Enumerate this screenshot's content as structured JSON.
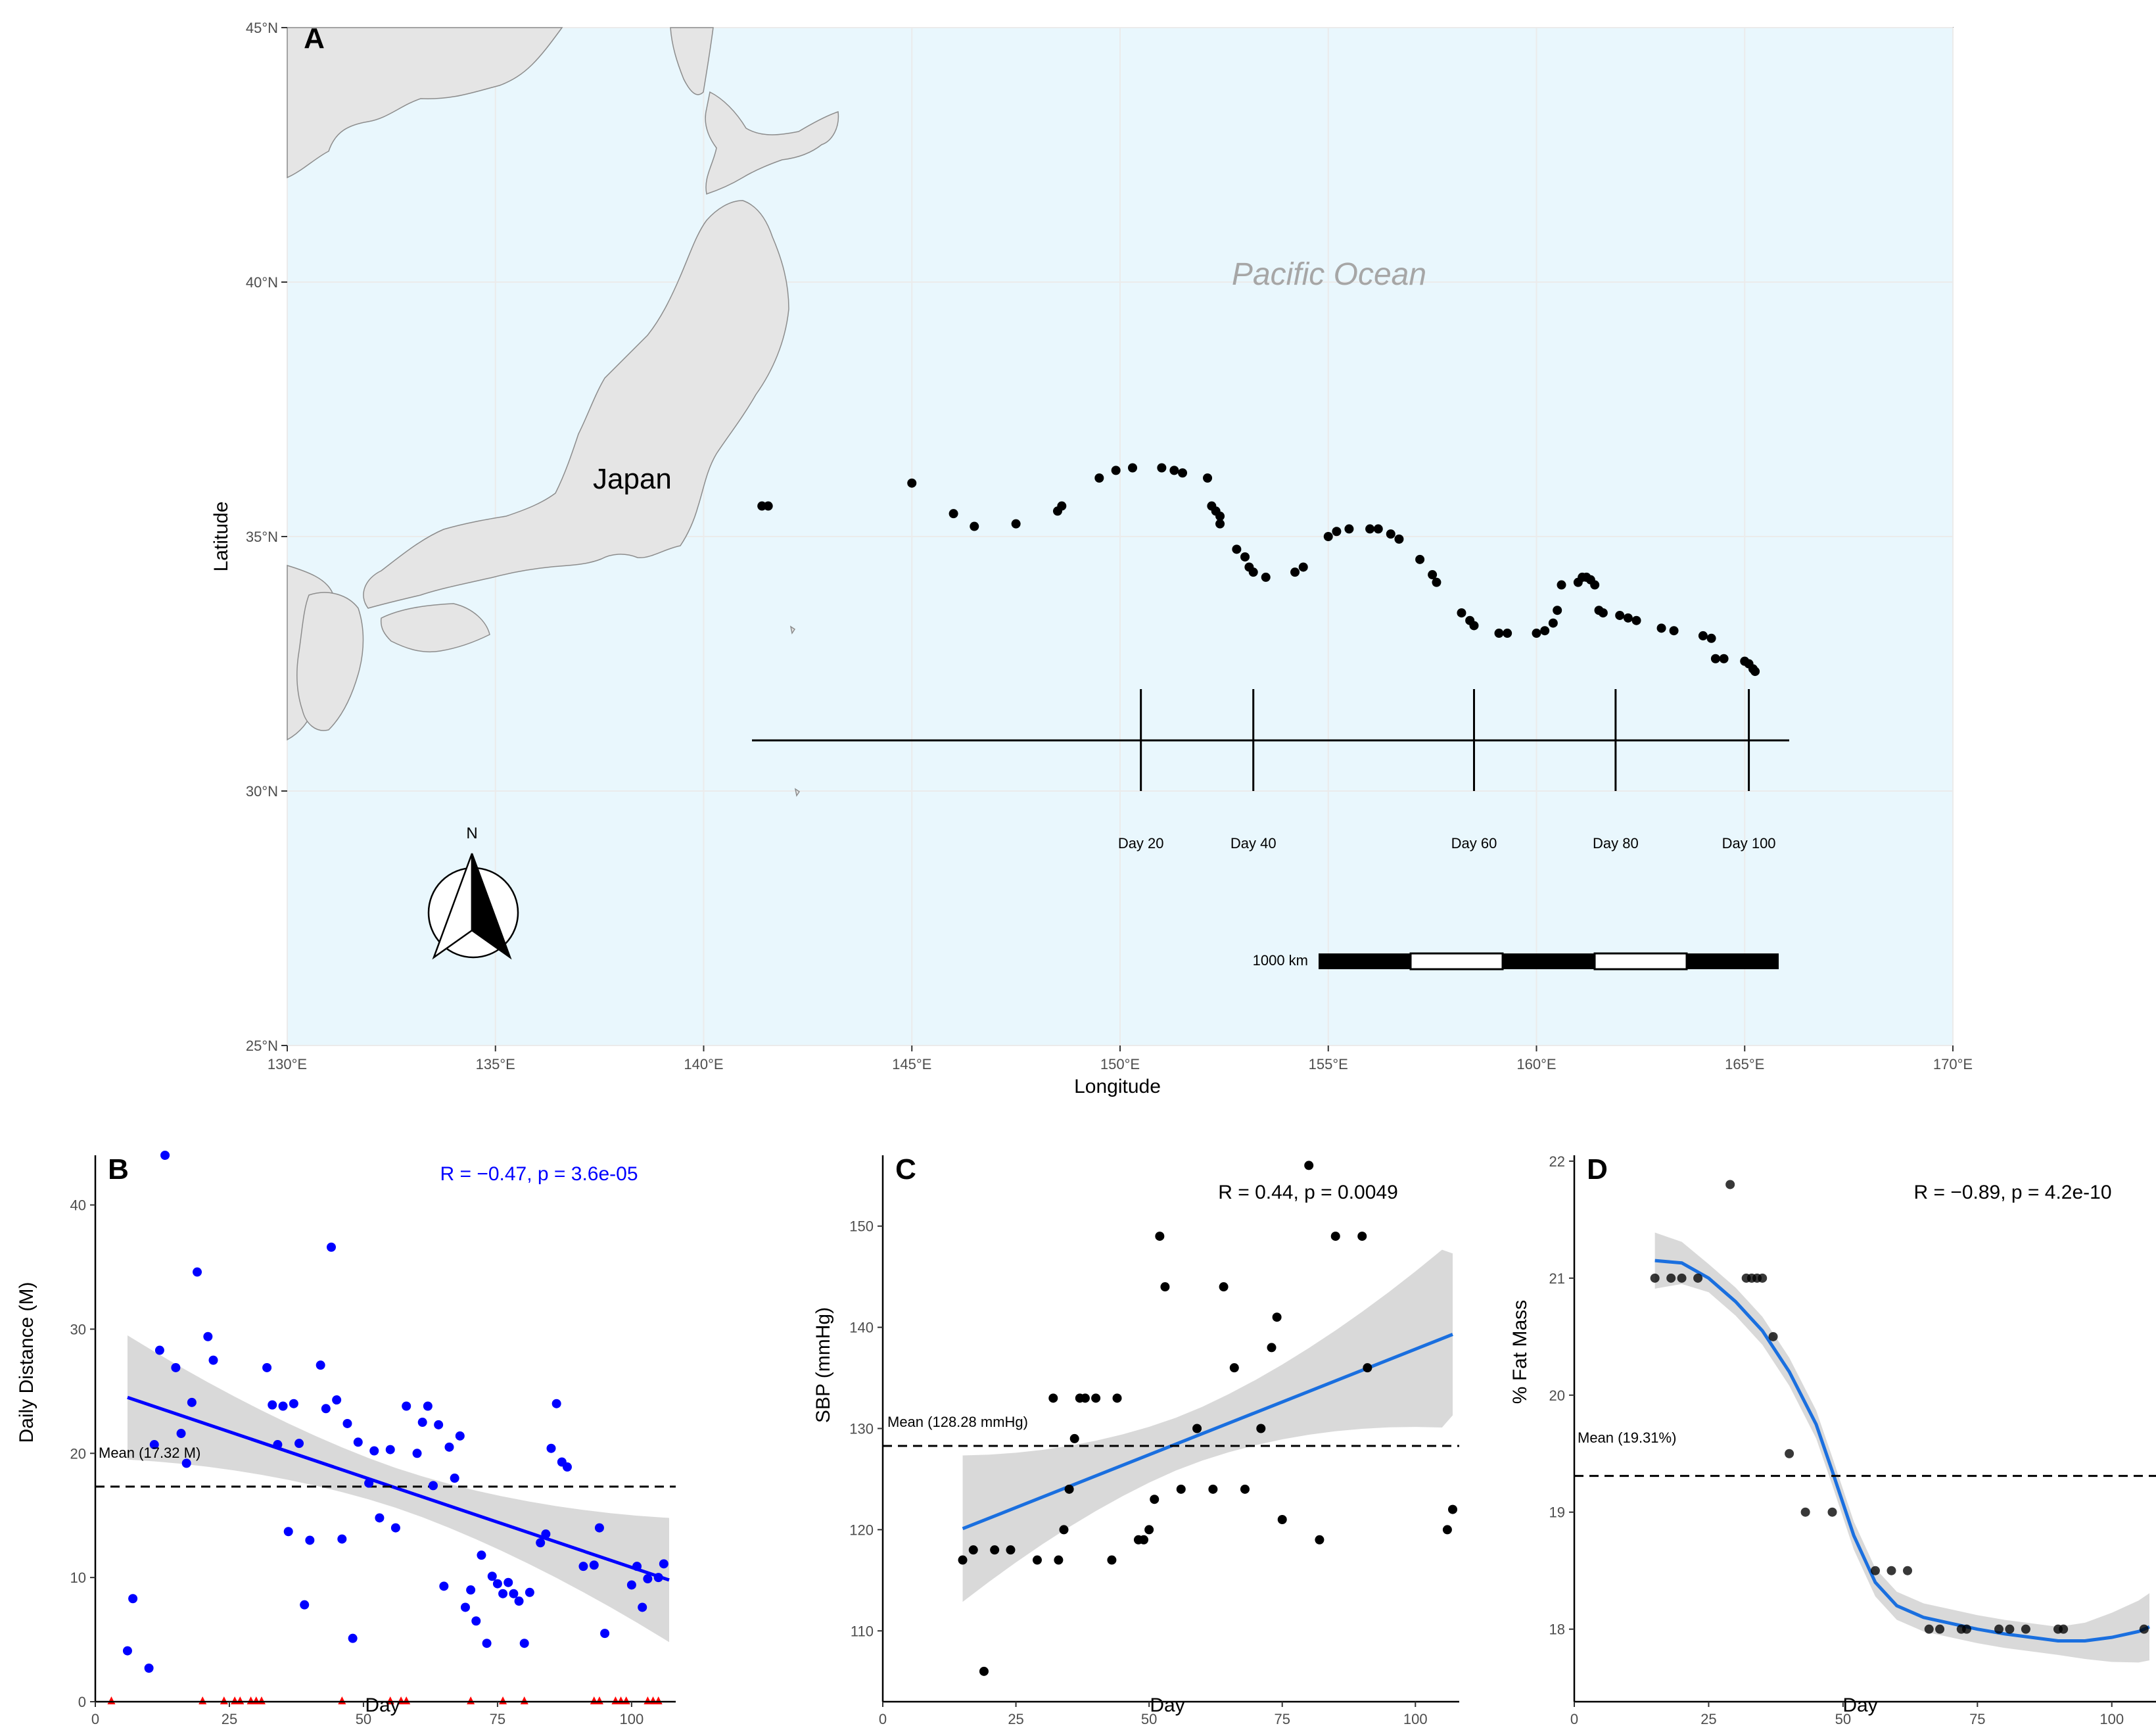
{
  "chart_data": [
    {
      "panel": "A",
      "type": "scatter",
      "subtype": "map",
      "xlabel": "Longitude",
      "ylabel": "Latitude",
      "xlim": [
        130,
        170
      ],
      "ylim": [
        25,
        45
      ],
      "x_ticks": [
        "130°E",
        "135°E",
        "140°E",
        "145°E",
        "150°E",
        "155°E",
        "160°E",
        "165°E",
        "170°E"
      ],
      "y_ticks": [
        "25°N",
        "30°N",
        "35°N",
        "40°N",
        "45°N"
      ],
      "ocean_label": "Pacific Ocean",
      "land_label": "Japan",
      "north_label": "N",
      "scale_label": "1000 km",
      "timeline_labels": [
        {
          "label": "Day 20",
          "lon": 150.5
        },
        {
          "label": "Day 40",
          "lon": 153.2
        },
        {
          "label": "Day 60",
          "lon": 158.5
        },
        {
          "label": "Day 80",
          "lon": 161.9
        },
        {
          "label": "Day 100",
          "lon": 165.1
        }
      ],
      "track": [
        [
          141.4,
          35.6
        ],
        [
          141.55,
          35.6
        ],
        [
          145.0,
          36.05
        ],
        [
          146.0,
          35.45
        ],
        [
          146.5,
          35.2
        ],
        [
          147.5,
          35.25
        ],
        [
          148.5,
          35.5
        ],
        [
          148.6,
          35.6
        ],
        [
          149.5,
          36.15
        ],
        [
          149.9,
          36.3
        ],
        [
          150.3,
          36.35
        ],
        [
          151.0,
          36.35
        ],
        [
          151.3,
          36.3
        ],
        [
          151.5,
          36.25
        ],
        [
          152.1,
          36.15
        ],
        [
          152.2,
          35.6
        ],
        [
          152.3,
          35.5
        ],
        [
          152.4,
          35.25
        ],
        [
          152.4,
          35.4
        ],
        [
          152.8,
          34.75
        ],
        [
          153.0,
          34.6
        ],
        [
          153.1,
          34.4
        ],
        [
          153.2,
          34.3
        ],
        [
          153.5,
          34.2
        ],
        [
          154.2,
          34.3
        ],
        [
          154.4,
          34.4
        ],
        [
          155.0,
          35.0
        ],
        [
          155.2,
          35.1
        ],
        [
          155.5,
          35.15
        ],
        [
          156.0,
          35.15
        ],
        [
          156.2,
          35.15
        ],
        [
          156.5,
          35.05
        ],
        [
          156.7,
          34.95
        ],
        [
          157.2,
          34.55
        ],
        [
          157.5,
          34.25
        ],
        [
          157.6,
          34.1
        ],
        [
          158.2,
          33.5
        ],
        [
          158.4,
          33.35
        ],
        [
          158.5,
          33.25
        ],
        [
          159.1,
          33.1
        ],
        [
          159.3,
          33.1
        ],
        [
          160.0,
          33.1
        ],
        [
          160.2,
          33.15
        ],
        [
          160.4,
          33.3
        ],
        [
          160.5,
          33.55
        ],
        [
          160.6,
          34.05
        ],
        [
          161.0,
          34.1
        ],
        [
          161.1,
          34.2
        ],
        [
          161.2,
          34.2
        ],
        [
          161.3,
          34.15
        ],
        [
          161.4,
          34.05
        ],
        [
          161.5,
          33.55
        ],
        [
          161.6,
          33.5
        ],
        [
          162.0,
          33.45
        ],
        [
          162.2,
          33.4
        ],
        [
          162.4,
          33.35
        ],
        [
          163.0,
          33.2
        ],
        [
          163.3,
          33.15
        ],
        [
          164.0,
          33.05
        ],
        [
          164.2,
          33.0
        ],
        [
          164.3,
          32.6
        ],
        [
          164.5,
          32.6
        ],
        [
          165.0,
          32.55
        ],
        [
          165.1,
          32.5
        ],
        [
          165.2,
          32.4
        ],
        [
          165.25,
          32.35
        ]
      ]
    },
    {
      "panel": "B",
      "type": "scatter",
      "xlabel": "Day",
      "ylabel": "Daily Distance (M)",
      "xlim": [
        0,
        107
      ],
      "ylim": [
        0,
        44
      ],
      "x_ticks": [
        0,
        25,
        50,
        75,
        100
      ],
      "y_ticks": [
        0,
        10,
        20,
        30,
        40
      ],
      "annotation": "R = −0.47, p = 3.6e-05",
      "annotation_color": "#0000ff",
      "mean_value": 17.32,
      "mean_label": "Mean (17.32 M)",
      "fit": {
        "x0": 6,
        "y0": 24.5,
        "x1": 107,
        "y1": 9.8,
        "color": "#0000ff"
      },
      "points": [
        [
          6,
          4.1
        ],
        [
          7,
          8.3
        ],
        [
          10,
          2.7
        ],
        [
          11,
          20.7
        ],
        [
          12,
          28.3
        ],
        [
          13,
          44
        ],
        [
          15,
          26.9
        ],
        [
          16,
          21.6
        ],
        [
          17,
          19.2
        ],
        [
          18,
          24.1
        ],
        [
          19,
          34.6
        ],
        [
          21,
          29.4
        ],
        [
          22,
          27.5
        ],
        [
          32,
          26.9
        ],
        [
          33,
          23.9
        ],
        [
          34,
          20.7
        ],
        [
          35,
          23.8
        ],
        [
          36,
          13.7
        ],
        [
          37,
          24.0
        ],
        [
          38,
          20.8
        ],
        [
          39,
          7.8
        ],
        [
          40,
          13.0
        ],
        [
          42,
          27.1
        ],
        [
          43,
          23.6
        ],
        [
          44,
          36.6
        ],
        [
          45,
          24.3
        ],
        [
          46,
          13.1
        ],
        [
          47,
          22.4
        ],
        [
          48,
          5.1
        ],
        [
          49,
          20.9
        ],
        [
          51,
          17.6
        ],
        [
          52,
          20.2
        ],
        [
          53,
          14.8
        ],
        [
          55,
          20.3
        ],
        [
          56,
          14.0
        ],
        [
          58,
          23.8
        ],
        [
          60,
          20.0
        ],
        [
          61,
          22.5
        ],
        [
          62,
          23.8
        ],
        [
          63,
          17.4
        ],
        [
          64,
          22.3
        ],
        [
          65,
          9.3
        ],
        [
          66,
          20.5
        ],
        [
          67,
          18.0
        ],
        [
          68,
          21.4
        ],
        [
          69,
          7.6
        ],
        [
          70,
          9.0
        ],
        [
          71,
          6.5
        ],
        [
          72,
          11.8
        ],
        [
          73,
          4.7
        ],
        [
          74,
          10.1
        ],
        [
          75,
          9.5
        ],
        [
          76,
          8.7
        ],
        [
          77,
          9.6
        ],
        [
          78,
          8.7
        ],
        [
          79,
          8.1
        ],
        [
          80,
          4.7
        ],
        [
          81,
          8.8
        ],
        [
          83,
          12.8
        ],
        [
          84,
          13.5
        ],
        [
          85,
          20.4
        ],
        [
          86,
          24.0
        ],
        [
          87,
          19.3
        ],
        [
          88,
          18.9
        ],
        [
          91,
          10.9
        ],
        [
          93,
          11.0
        ],
        [
          94,
          14.0
        ],
        [
          95,
          5.5
        ],
        [
          100,
          9.4
        ],
        [
          101,
          10.9
        ],
        [
          102,
          7.6
        ],
        [
          103,
          9.9
        ],
        [
          105,
          10.0
        ],
        [
          106,
          11.1
        ]
      ],
      "zero_markers_color": "#ff0000",
      "zero_markers_days": [
        3,
        20,
        24,
        26,
        27,
        29,
        30,
        31,
        46,
        55,
        57,
        58,
        70,
        76,
        80,
        93,
        94,
        97,
        98,
        99,
        103,
        104,
        105
      ]
    },
    {
      "panel": "C",
      "type": "scatter",
      "xlabel": "Day",
      "ylabel": "SBP (mmHg)",
      "xlim": [
        0,
        107
      ],
      "ylim": [
        103,
        157
      ],
      "x_ticks": [
        0,
        25,
        50,
        75,
        100
      ],
      "y_ticks": [
        110,
        120,
        130,
        140,
        150
      ],
      "annotation": "R = 0.44, p = 0.0049",
      "annotation_color": "#000000",
      "mean_value": 128.28,
      "mean_label": "Mean (128.28 mmHg)",
      "fit": {
        "x0": 15,
        "y0": 120.1,
        "x1": 107,
        "y1": 139.3,
        "color": "#1a6fdf"
      },
      "points": [
        [
          15,
          117
        ],
        [
          17,
          118
        ],
        [
          19,
          106
        ],
        [
          21,
          118
        ],
        [
          24,
          118
        ],
        [
          29,
          117
        ],
        [
          32,
          133
        ],
        [
          33,
          117
        ],
        [
          34,
          120
        ],
        [
          35,
          124
        ],
        [
          36,
          129
        ],
        [
          37,
          133
        ],
        [
          38,
          133
        ],
        [
          40,
          133
        ],
        [
          43,
          117
        ],
        [
          44,
          133
        ],
        [
          48,
          119
        ],
        [
          49,
          119
        ],
        [
          50,
          120
        ],
        [
          51,
          123
        ],
        [
          52,
          149
        ],
        [
          53,
          144
        ],
        [
          56,
          124
        ],
        [
          59,
          130
        ],
        [
          62,
          124
        ],
        [
          64,
          144
        ],
        [
          66,
          136
        ],
        [
          68,
          124
        ],
        [
          71,
          130
        ],
        [
          73,
          138
        ],
        [
          74,
          141
        ],
        [
          75,
          121
        ],
        [
          80,
          156
        ],
        [
          82,
          119
        ],
        [
          85,
          149
        ],
        [
          90,
          149
        ],
        [
          91,
          136
        ],
        [
          106,
          120
        ],
        [
          107,
          122
        ]
      ]
    },
    {
      "panel": "D",
      "type": "scatter",
      "xlabel": "Day",
      "ylabel": "% Fat Mass",
      "xlim": [
        0,
        107
      ],
      "ylim": [
        17.38,
        22.05
      ],
      "x_ticks": [
        0,
        25,
        50,
        75,
        100
      ],
      "y_ticks": [
        18,
        19,
        20,
        21,
        22
      ],
      "annotation": "R = −0.89, p = 4.2e-10",
      "annotation_color": "#000000",
      "mean_value": 19.31,
      "mean_label": "Mean (19.31%)",
      "fit_curve": [
        [
          15,
          21.15
        ],
        [
          20,
          21.13
        ],
        [
          25,
          21.0
        ],
        [
          30,
          20.8
        ],
        [
          35,
          20.55
        ],
        [
          40,
          20.2
        ],
        [
          45,
          19.75
        ],
        [
          48,
          19.35
        ],
        [
          52,
          18.8
        ],
        [
          56,
          18.4
        ],
        [
          60,
          18.2
        ],
        [
          65,
          18.1
        ],
        [
          70,
          18.05
        ],
        [
          75,
          18.0
        ],
        [
          80,
          17.96
        ],
        [
          85,
          17.93
        ],
        [
          90,
          17.9
        ],
        [
          95,
          17.9
        ],
        [
          100,
          17.93
        ],
        [
          105,
          17.98
        ],
        [
          107,
          18.02
        ]
      ],
      "fit_color": "#1a6fdf",
      "points": [
        [
          15,
          21.0
        ],
        [
          18,
          21.0
        ],
        [
          20,
          21.0
        ],
        [
          23,
          21.0
        ],
        [
          29,
          21.8
        ],
        [
          32,
          21.0
        ],
        [
          33,
          21.0
        ],
        [
          34,
          21.0
        ],
        [
          35,
          21.0
        ],
        [
          37,
          20.5
        ],
        [
          40,
          19.5
        ],
        [
          43,
          19.0
        ],
        [
          48,
          19.0
        ],
        [
          56,
          18.5
        ],
        [
          59,
          18.5
        ],
        [
          62,
          18.5
        ],
        [
          66,
          18.0
        ],
        [
          68,
          18.0
        ],
        [
          72,
          18.0
        ],
        [
          73,
          18.0
        ],
        [
          79,
          18.0
        ],
        [
          81,
          18.0
        ],
        [
          84,
          18.0
        ],
        [
          90,
          18.0
        ],
        [
          91,
          18.0
        ],
        [
          106,
          18.0
        ]
      ]
    }
  ]
}
